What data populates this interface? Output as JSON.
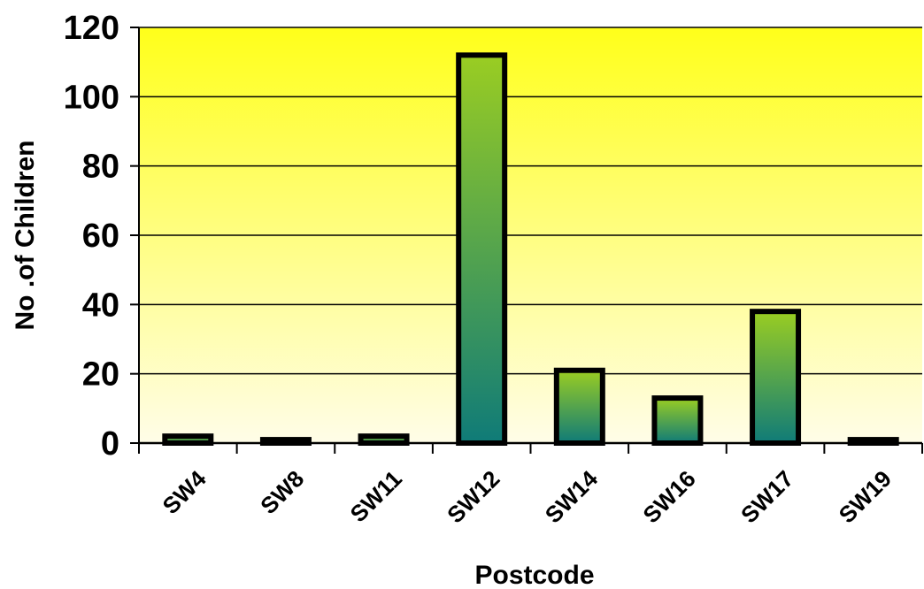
{
  "chart_data": {
    "type": "bar",
    "title": "",
    "xlabel": "Postcode",
    "ylabel": "No .of Children",
    "categories": [
      "SW4",
      "SW8",
      "SW11",
      "SW12",
      "SW14",
      "SW16",
      "SW17",
      "SW19"
    ],
    "values": [
      2,
      1,
      2,
      112,
      21,
      13,
      38,
      1
    ],
    "ylim": [
      0,
      120
    ],
    "yticks": [
      0,
      20,
      40,
      60,
      80,
      100,
      120
    ],
    "grid": true,
    "legend": "none",
    "colors": {
      "plot_bg_top": "#ffff1a",
      "plot_bg_bottom": "#fffde8",
      "bar_top": "#9acd22",
      "bar_bottom": "#0f7b78"
    }
  }
}
